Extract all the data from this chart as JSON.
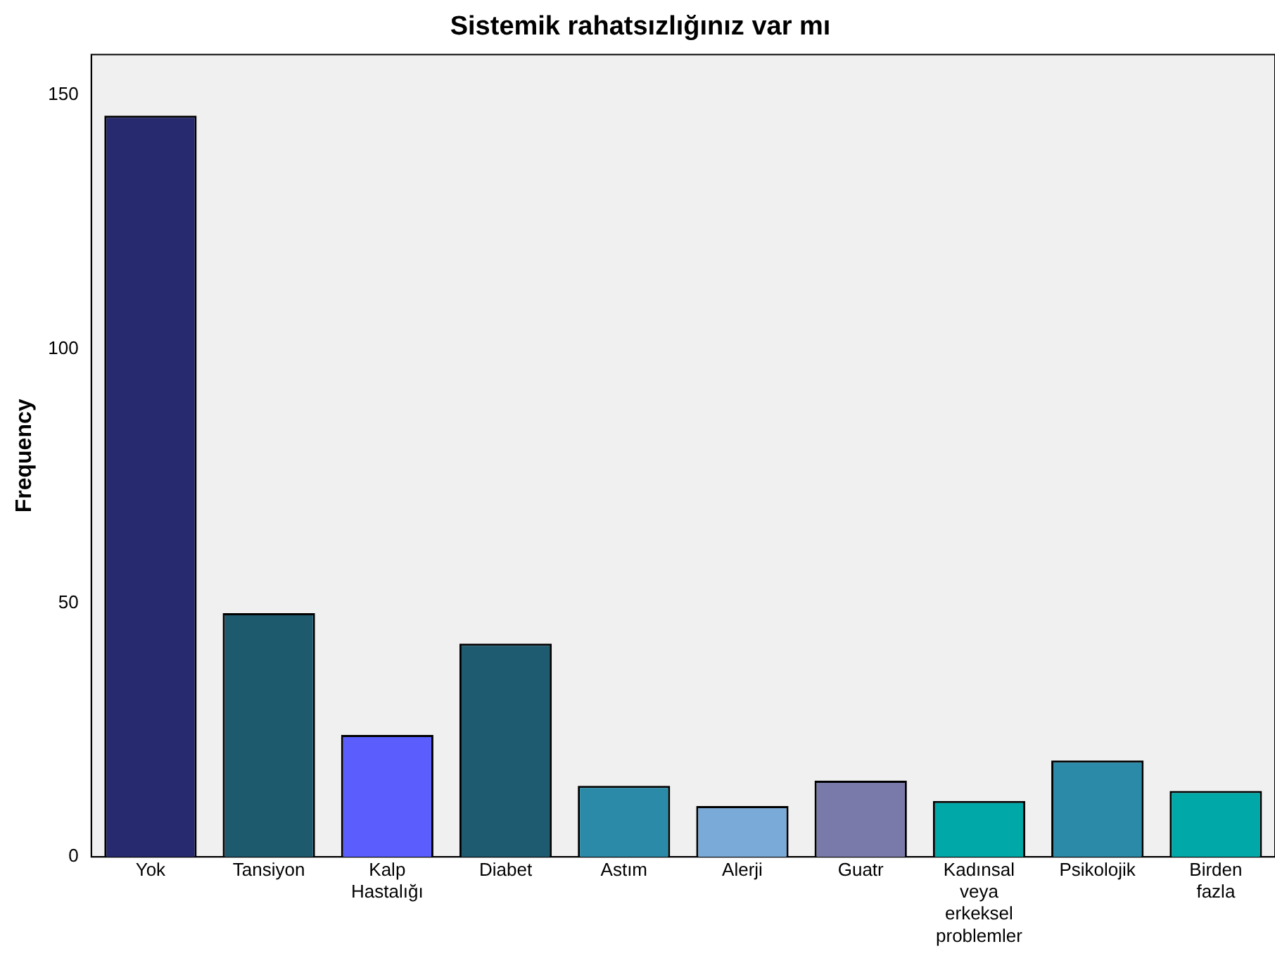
{
  "chart_data": {
    "type": "bar",
    "title": "Sistemik rahatsızlığınız var mı",
    "ylabel": "Frequency",
    "categories": [
      "Yok",
      "Tansiyon",
      "Kalp Hastalığı",
      "Diabet",
      "Astım",
      "Alerji",
      "Guatr",
      "Kadınsal veya erkeksel problemler",
      "Psikolojik",
      "Birden fazla"
    ],
    "values": [
      146,
      48,
      24,
      42,
      14,
      10,
      15,
      11,
      19,
      13
    ],
    "colors": [
      "#272a6e",
      "#1e5a6e",
      "#5b5efc",
      "#1e5a70",
      "#2a8aa8",
      "#7aaad8",
      "#7a7aaa",
      "#00a8a8",
      "#2a8aa8",
      "#00a8a8"
    ],
    "ylim": [
      0,
      158
    ],
    "yticks": [
      0,
      50,
      100,
      150
    ],
    "grid": false,
    "legend": false
  }
}
